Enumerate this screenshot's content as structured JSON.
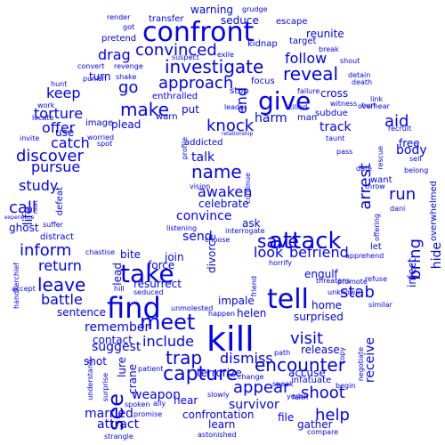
{
  "word_color": "#0000ff",
  "background": "#ffffff",
  "words": [
    {
      "text": "kill"
    },
    {
      "text": "find"
    },
    {
      "text": "tell"
    },
    {
      "text": "take"
    },
    {
      "text": "confront"
    },
    {
      "text": "give"
    },
    {
      "text": "attack"
    },
    {
      "text": "meet"
    },
    {
      "text": "capture"
    },
    {
      "text": "see"
    },
    {
      "text": "investigate"
    },
    {
      "text": "name"
    },
    {
      "text": "arrest"
    },
    {
      "text": "reveal"
    },
    {
      "text": "encounter"
    },
    {
      "text": "shoot"
    },
    {
      "text": "save"
    },
    {
      "text": "trap"
    },
    {
      "text": "approach"
    },
    {
      "text": "make"
    },
    {
      "text": "bring"
    },
    {
      "text": "leave"
    },
    {
      "text": "inform"
    },
    {
      "text": "discover"
    },
    {
      "text": "call"
    },
    {
      "text": "visit"
    },
    {
      "text": "stab"
    },
    {
      "text": "run"
    },
    {
      "text": "help"
    },
    {
      "text": "go"
    },
    {
      "text": "appear"
    },
    {
      "text": "convinced"
    },
    {
      "text": "knock"
    },
    {
      "text": "include"
    },
    {
      "text": "return"
    },
    {
      "text": "befriend"
    },
    {
      "text": "follow"
    },
    {
      "text": "drag"
    },
    {
      "text": "keep"
    },
    {
      "text": "aid"
    },
    {
      "text": "offer"
    },
    {
      "text": "torture"
    },
    {
      "text": "look"
    },
    {
      "text": "dismiss"
    },
    {
      "text": "battle"
    },
    {
      "text": "pursue"
    },
    {
      "text": "study"
    },
    {
      "text": "track"
    },
    {
      "text": "catch"
    },
    {
      "text": "survivor"
    },
    {
      "text": "harm"
    },
    {
      "text": "attract"
    },
    {
      "text": "married"
    },
    {
      "text": "weapon"
    },
    {
      "text": "awaken"
    },
    {
      "text": "send"
    },
    {
      "text": "remember"
    },
    {
      "text": "suggest"
    },
    {
      "text": "convince"
    },
    {
      "text": "resurrect"
    },
    {
      "text": "end"
    },
    {
      "text": "receive"
    },
    {
      "text": "body"
    },
    {
      "text": "turn"
    },
    {
      "text": "reunite"
    },
    {
      "text": "talk"
    },
    {
      "text": "hide"
    },
    {
      "text": "celebrate"
    },
    {
      "text": "impale"
    },
    {
      "text": "sentence"
    },
    {
      "text": "lead"
    },
    {
      "text": "bite"
    },
    {
      "text": "ask"
    },
    {
      "text": "join"
    },
    {
      "text": "force"
    },
    {
      "text": "contact"
    },
    {
      "text": "life"
    },
    {
      "text": "ghost"
    },
    {
      "text": "free"
    },
    {
      "text": "inject"
    },
    {
      "text": "engulf"
    },
    {
      "text": "surprised"
    },
    {
      "text": "hear"
    },
    {
      "text": "terrorize"
    },
    {
      "text": "learn"
    },
    {
      "text": "gather"
    },
    {
      "text": "release"
    },
    {
      "text": "file"
    },
    {
      "text": "shot"
    },
    {
      "text": "lure"
    },
    {
      "text": "crane"
    },
    {
      "text": "helen"
    },
    {
      "text": "home"
    },
    {
      "text": "accuse"
    },
    {
      "text": "confrontation"
    },
    {
      "text": "use"
    },
    {
      "text": "plead"
    },
    {
      "text": "enthralled"
    },
    {
      "text": "seduce"
    },
    {
      "text": "warning"
    },
    {
      "text": "kidnap"
    },
    {
      "text": "target"
    },
    {
      "text": "stop"
    },
    {
      "text": "addicted"
    },
    {
      "text": "divorce"
    },
    {
      "text": "infatuate"
    },
    {
      "text": "let"
    },
    {
      "text": "want"
    },
    {
      "text": "overwhelmed"
    },
    {
      "text": "cross"
    },
    {
      "text": "subdue"
    },
    {
      "text": "man"
    },
    {
      "text": "warn"
    },
    {
      "text": "put"
    },
    {
      "text": "image"
    },
    {
      "text": "distract"
    },
    {
      "text": "defeat"
    },
    {
      "text": "transfer"
    },
    {
      "text": "pretend"
    },
    {
      "text": "escape"
    },
    {
      "text": "grudge"
    },
    {
      "text": "focus"
    },
    {
      "text": "leader"
    },
    {
      "text": "exile"
    },
    {
      "text": "suspect"
    },
    {
      "text": "got"
    },
    {
      "text": "convert"
    },
    {
      "text": "revenge"
    },
    {
      "text": "punish"
    },
    {
      "text": "shake"
    },
    {
      "text": "hunt"
    },
    {
      "text": "work"
    },
    {
      "text": "locate"
    },
    {
      "text": "invite"
    },
    {
      "text": "worried"
    },
    {
      "text": "spot"
    },
    {
      "text": "handkerchief"
    },
    {
      "text": "experience"
    },
    {
      "text": "court"
    },
    {
      "text": "suffer"
    },
    {
      "text": "accept"
    },
    {
      "text": "chastise"
    },
    {
      "text": "hill"
    },
    {
      "text": "seduced"
    },
    {
      "text": "listening"
    },
    {
      "text": "choose"
    },
    {
      "text": "interrogate"
    },
    {
      "text": "horrify"
    },
    {
      "text": "apprehend"
    },
    {
      "text": "threatens"
    },
    {
      "text": "promote"
    },
    {
      "text": "unknown"
    },
    {
      "text": "similar"
    },
    {
      "text": "refuse"
    },
    {
      "text": "friend"
    },
    {
      "text": "unmolested"
    },
    {
      "text": "happen"
    },
    {
      "text": "path"
    },
    {
      "text": "patient"
    },
    {
      "text": "surprise"
    },
    {
      "text": "ally"
    },
    {
      "text": "promise"
    },
    {
      "text": "spoken"
    },
    {
      "text": "strangle"
    },
    {
      "text": "astonished"
    },
    {
      "text": "slowly"
    },
    {
      "text": "change"
    },
    {
      "text": "speak"
    },
    {
      "text": "york"
    },
    {
      "text": "begin"
    },
    {
      "text": "faith"
    },
    {
      "text": "compare"
    },
    {
      "text": "negotiate"
    },
    {
      "text": "copy"
    },
    {
      "text": "offering"
    },
    {
      "text": "dani"
    },
    {
      "text": "throw"
    },
    {
      "text": "rescue"
    },
    {
      "text": "date"
    },
    {
      "text": "pass"
    },
    {
      "text": "taunt"
    },
    {
      "text": "link"
    },
    {
      "text": "hurt"
    },
    {
      "text": "recruit"
    },
    {
      "text": "belong"
    },
    {
      "text": "sell"
    },
    {
      "text": "detain"
    },
    {
      "text": "death"
    },
    {
      "text": "overhear"
    },
    {
      "text": "shout"
    },
    {
      "text": "break"
    },
    {
      "text": "witness"
    },
    {
      "text": "killed"
    },
    {
      "text": "failure"
    },
    {
      "text": "relationship"
    },
    {
      "text": "continue"
    },
    {
      "text": "vision"
    },
    {
      "text": "profile"
    },
    {
      "text": "understand"
    },
    {
      "text": "render"
    }
  ]
}
